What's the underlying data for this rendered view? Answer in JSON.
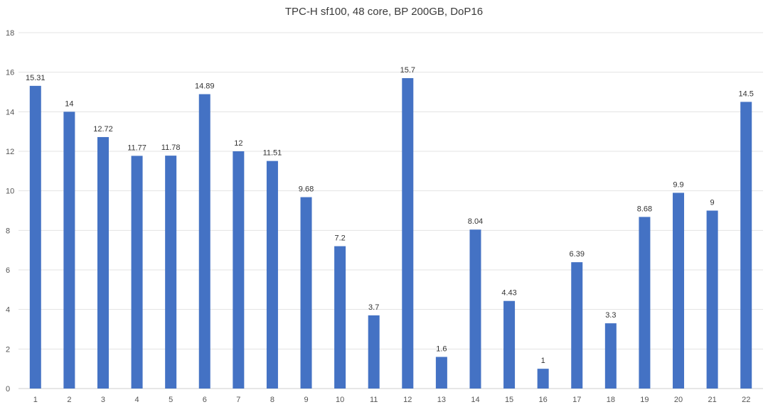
{
  "chart_data": {
    "type": "bar",
    "title": "TPC-H sf100, 48 core, BP 200GB, DoP16",
    "xlabel": "",
    "ylabel": "",
    "ylim": [
      0,
      18
    ],
    "yticks": [
      0,
      2,
      4,
      6,
      8,
      10,
      12,
      14,
      16,
      18
    ],
    "categories": [
      "1",
      "2",
      "3",
      "4",
      "5",
      "6",
      "7",
      "8",
      "9",
      "10",
      "11",
      "12",
      "13",
      "14",
      "15",
      "16",
      "17",
      "18",
      "19",
      "20",
      "21",
      "22"
    ],
    "values": [
      15.31,
      14,
      12.72,
      11.77,
      11.78,
      14.89,
      12,
      11.51,
      9.68,
      7.2,
      3.7,
      15.7,
      1.6,
      8.04,
      4.43,
      1,
      6.39,
      3.3,
      8.68,
      9.9,
      9,
      14.5
    ],
    "data_labels": [
      "15.31",
      "14",
      "12.72",
      "11.77",
      "11.78",
      "14.89",
      "12",
      "11.51",
      "9.68",
      "7.2",
      "3.7",
      "15.7",
      "1.6",
      "8.04",
      "4.43",
      "1",
      "6.39",
      "3.3",
      "8.68",
      "9.9",
      "9",
      "14.5"
    ],
    "bar_color": "#4472c4",
    "grid": true,
    "grid_color": "#e3e3e3",
    "legend": false
  }
}
